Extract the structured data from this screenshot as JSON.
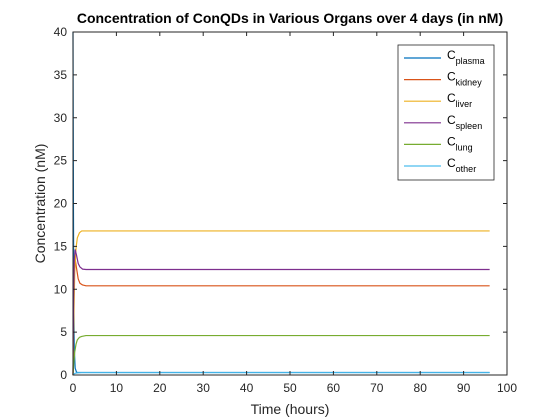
{
  "chart_data": {
    "type": "line",
    "title": "Concentration of ConQDs in Various Organs over 4 days (in nM)",
    "xlabel": "Time (hours)",
    "ylabel": "Concentration (nM)",
    "xlim": [
      0,
      100
    ],
    "ylim": [
      0,
      40
    ],
    "xticks": [
      0,
      10,
      20,
      30,
      40,
      50,
      60,
      70,
      80,
      90,
      100
    ],
    "yticks": [
      0,
      5,
      10,
      15,
      20,
      25,
      30,
      35,
      40
    ],
    "grid": false,
    "legend_position": "top-right",
    "series": [
      {
        "name": "C",
        "subscript": "plasma",
        "color": "#0072BD",
        "points": [
          [
            0,
            40
          ],
          [
            0.1,
            20
          ],
          [
            0.2,
            8
          ],
          [
            0.3,
            3
          ],
          [
            0.5,
            0.8
          ],
          [
            0.8,
            0.35
          ],
          [
            1,
            0.3
          ],
          [
            2,
            0.3
          ],
          [
            96,
            0.3
          ]
        ]
      },
      {
        "name": "C",
        "subscript": "kidney",
        "color": "#D95319",
        "points": [
          [
            0,
            0
          ],
          [
            0.15,
            8
          ],
          [
            0.3,
            12.5
          ],
          [
            0.5,
            13.5
          ],
          [
            0.8,
            12.5
          ],
          [
            1.2,
            11.2
          ],
          [
            1.6,
            10.7
          ],
          [
            2.2,
            10.5
          ],
          [
            3,
            10.4
          ],
          [
            96,
            10.4
          ]
        ]
      },
      {
        "name": "C",
        "subscript": "liver",
        "color": "#EDB120",
        "points": [
          [
            0,
            0
          ],
          [
            0.2,
            7
          ],
          [
            0.4,
            12
          ],
          [
            0.7,
            14.8
          ],
          [
            1,
            16
          ],
          [
            1.5,
            16.6
          ],
          [
            2,
            16.8
          ],
          [
            3,
            16.8
          ],
          [
            96,
            16.8
          ]
        ]
      },
      {
        "name": "C",
        "subscript": "spleen",
        "color": "#7E2F8E",
        "points": [
          [
            0,
            0
          ],
          [
            0.15,
            9
          ],
          [
            0.3,
            13.5
          ],
          [
            0.5,
            14.6
          ],
          [
            0.8,
            14
          ],
          [
            1.2,
            13
          ],
          [
            1.6,
            12.6
          ],
          [
            2.2,
            12.35
          ],
          [
            3,
            12.3
          ],
          [
            96,
            12.3
          ]
        ]
      },
      {
        "name": "C",
        "subscript": "lung",
        "color": "#77AC30",
        "points": [
          [
            0,
            0
          ],
          [
            0.2,
            1.5
          ],
          [
            0.4,
            2.7
          ],
          [
            0.7,
            3.6
          ],
          [
            1,
            4.1
          ],
          [
            1.5,
            4.4
          ],
          [
            2,
            4.5
          ],
          [
            3,
            4.6
          ],
          [
            96,
            4.6
          ]
        ]
      },
      {
        "name": "C",
        "subscript": "other",
        "color": "#4DBEEE",
        "points": [
          [
            0,
            0
          ],
          [
            0.3,
            0.15
          ],
          [
            0.6,
            0.22
          ],
          [
            1,
            0.25
          ],
          [
            2,
            0.27
          ],
          [
            96,
            0.27
          ]
        ]
      }
    ]
  }
}
